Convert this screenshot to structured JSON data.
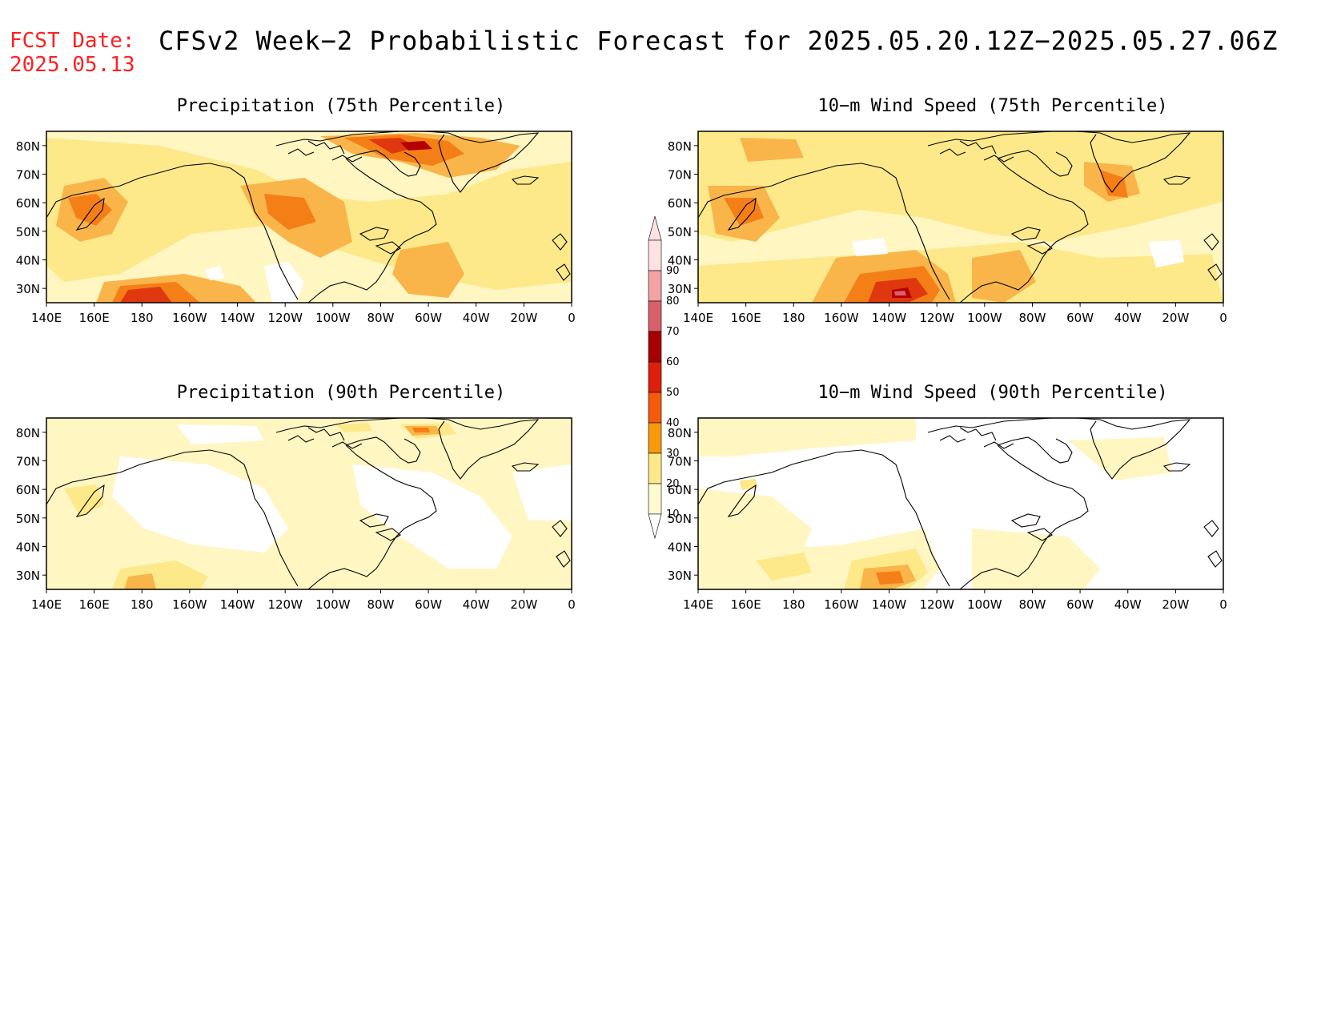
{
  "header": {
    "fcst_label": "FCST Date:",
    "fcst_date": "2025.05.13",
    "title": "CFSv2 Week−2 Probabilistic Forecast for 2025.05.20.12Z−2025.05.27.06Z"
  },
  "axes": {
    "lon_labels": [
      "140E",
      "160E",
      "180",
      "160W",
      "140W",
      "120W",
      "100W",
      "80W",
      "60W",
      "40W",
      "20W",
      "0"
    ],
    "lat_labels": [
      "80N",
      "70N",
      "60N",
      "50N",
      "40N",
      "30N"
    ],
    "lon_range": [
      "140E",
      "0"
    ],
    "lat_range": [
      25,
      85
    ]
  },
  "panels": [
    {
      "id": "precip75",
      "title": "Precipitation (75th Percentile)",
      "intensity": "high",
      "dominant_band": "20-40"
    },
    {
      "id": "wind75",
      "title": "10−m Wind Speed (75th Percentile)",
      "intensity": "high",
      "dominant_band": "20-40"
    },
    {
      "id": "precip90",
      "title": "Precipitation (90th Percentile)",
      "intensity": "low",
      "dominant_band": "10-20"
    },
    {
      "id": "wind90",
      "title": "10−m Wind Speed (90th Percentile)",
      "intensity": "low",
      "dominant_band": "0-20"
    }
  ],
  "colorbar": {
    "levels": [
      "90",
      "80",
      "70",
      "60",
      "50",
      "40",
      "30",
      "20",
      "10"
    ],
    "colors": [
      "#fde2e2",
      "#f4a3a3",
      "#d9606a",
      "#a80000",
      "#dd1f0b",
      "#f55a0c",
      "#f79a0c",
      "#fde98a",
      "#fffbd1"
    ]
  },
  "colors": {
    "white": "#ffffff",
    "c10": "#fff6c2",
    "c20": "#fde98a",
    "c30": "#f9b54a",
    "c40": "#f57f17",
    "c50": "#e0380e",
    "c60": "#b30000",
    "c70": "#d9606a",
    "coast": "#000000"
  }
}
